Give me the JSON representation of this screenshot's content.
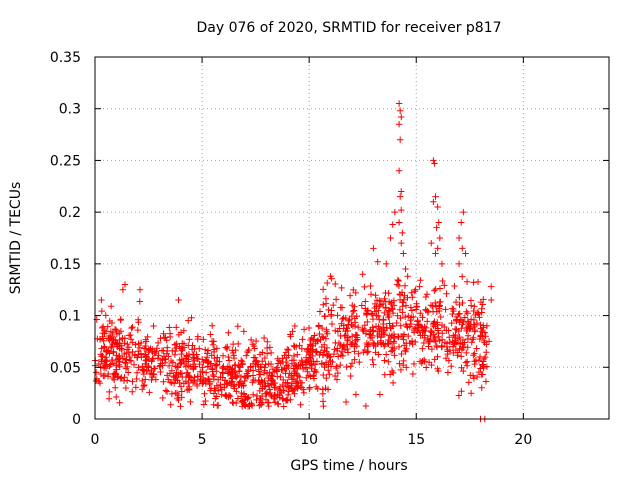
{
  "chart_data": {
    "type": "scatter",
    "title": "Day 076 of 2020, SRMTID for receiver p817",
    "xlabel": "GPS time / hours",
    "ylabel": "SRMTID / TECUs",
    "xlim": [
      0,
      24
    ],
    "ylim": [
      0,
      0.35
    ],
    "x_ticks": [
      0,
      5,
      10,
      15,
      20
    ],
    "y_ticks": [
      0,
      0.05,
      0.1,
      0.15,
      0.2,
      0.25,
      0.3,
      0.35
    ],
    "x_tick_labels": [
      "0",
      "5",
      "10",
      "15",
      "20"
    ],
    "y_tick_labels": [
      "0",
      "0.05",
      "0.1",
      "0.15",
      "0.2",
      "0.25",
      "0.3",
      "0.35"
    ],
    "grid": true,
    "marker": "+",
    "color": "#ff0000",
    "trend": [
      [
        0.0,
        0.06
      ],
      [
        1.0,
        0.065
      ],
      [
        2.0,
        0.062
      ],
      [
        3.0,
        0.055
      ],
      [
        4.0,
        0.05
      ],
      [
        5.0,
        0.048
      ],
      [
        6.0,
        0.042
      ],
      [
        7.0,
        0.038
      ],
      [
        8.0,
        0.04
      ],
      [
        9.0,
        0.04
      ],
      [
        10.0,
        0.055
      ],
      [
        11.0,
        0.072
      ],
      [
        12.0,
        0.082
      ],
      [
        13.0,
        0.09
      ],
      [
        14.0,
        0.092
      ],
      [
        15.0,
        0.09
      ],
      [
        16.0,
        0.085
      ],
      [
        17.0,
        0.08
      ],
      [
        18.0,
        0.07
      ],
      [
        18.3,
        0.06
      ]
    ],
    "x_range": [
      0.0,
      18.3
    ],
    "n_points": 1500,
    "spread": 0.018,
    "outliers": [
      [
        14.2,
        0.305
      ],
      [
        14.25,
        0.298
      ],
      [
        14.3,
        0.292
      ],
      [
        14.2,
        0.285
      ],
      [
        14.25,
        0.27
      ],
      [
        14.2,
        0.24
      ],
      [
        14.3,
        0.22
      ],
      [
        14.25,
        0.215
      ],
      [
        14.3,
        0.202
      ],
      [
        14.2,
        0.19
      ],
      [
        14.35,
        0.18
      ],
      [
        14.3,
        0.17
      ],
      [
        14.4,
        0.16
      ],
      [
        13.9,
        0.188
      ],
      [
        13.8,
        0.175
      ],
      [
        14.0,
        0.2
      ],
      [
        14.5,
        0.145
      ],
      [
        14.6,
        0.138
      ],
      [
        15.8,
        0.25
      ],
      [
        15.85,
        0.247
      ],
      [
        15.9,
        0.215
      ],
      [
        15.8,
        0.21
      ],
      [
        16.0,
        0.205
      ],
      [
        16.05,
        0.19
      ],
      [
        15.95,
        0.185
      ],
      [
        16.1,
        0.175
      ],
      [
        16.0,
        0.165
      ],
      [
        15.7,
        0.17
      ],
      [
        15.9,
        0.16
      ],
      [
        16.2,
        0.15
      ],
      [
        17.0,
        0.175
      ],
      [
        17.1,
        0.19
      ],
      [
        17.2,
        0.2
      ],
      [
        17.15,
        0.165
      ],
      [
        17.3,
        0.16
      ],
      [
        17.0,
        0.15
      ],
      [
        13.0,
        0.165
      ],
      [
        13.2,
        0.152
      ],
      [
        13.6,
        0.15
      ],
      [
        11.0,
        0.138
      ],
      [
        12.5,
        0.14
      ],
      [
        1.4,
        0.13
      ],
      [
        1.3,
        0.125
      ],
      [
        2.1,
        0.125
      ],
      [
        0.3,
        0.115
      ],
      [
        3.9,
        0.115
      ],
      [
        18.0,
        0.0
      ],
      [
        18.2,
        0.0
      ],
      [
        18.5,
        0.128
      ],
      [
        18.5,
        0.115
      ],
      [
        18.3,
        0.09
      ],
      [
        18.4,
        0.075
      ]
    ]
  }
}
